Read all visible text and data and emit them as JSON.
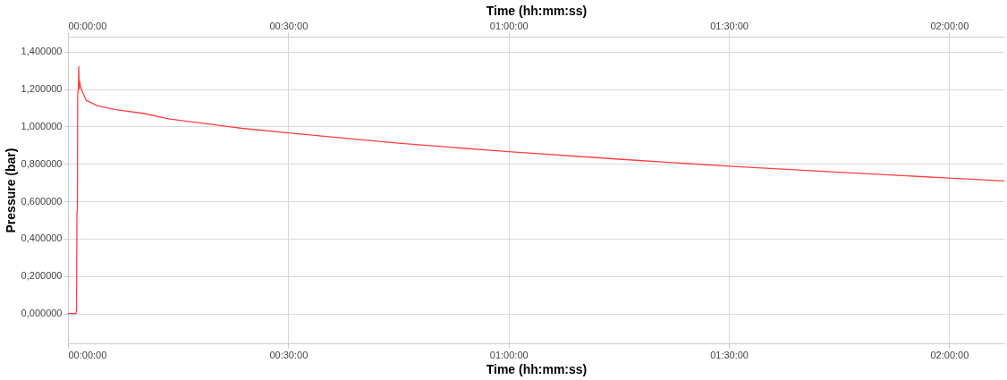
{
  "chart_data": {
    "type": "line",
    "xlabel": "Time (hh:mm:ss)",
    "x2label": "Time (hh:mm:ss)",
    "ylabel": "Pressure (bar)",
    "xlim": [
      0,
      2.125
    ],
    "x2lim": [
      0,
      2.125
    ],
    "xticks": [
      {
        "value": 0,
        "label": "00:00:00"
      },
      {
        "value": 0.5,
        "label": "00:30:00"
      },
      {
        "value": 1,
        "label": "01:00:00"
      },
      {
        "value": 1.5,
        "label": "01:30:00"
      },
      {
        "value": 2,
        "label": "02:00:00"
      }
    ],
    "x2ticks": [
      {
        "value": 0,
        "label": "00:00:00"
      },
      {
        "value": 0.5,
        "label": "00:30:00"
      },
      {
        "value": 1,
        "label": "01:00:00"
      },
      {
        "value": 1.5,
        "label": "01:30:00"
      },
      {
        "value": 2,
        "label": "02:00:00"
      }
    ],
    "ylim": [
      -0.16,
      1.48
    ],
    "yticks": [
      {
        "value": 0,
        "label": "0,000000"
      },
      {
        "value": 0.2,
        "label": "0,200000"
      },
      {
        "value": 0.4,
        "label": "0,400000"
      },
      {
        "value": 0.6,
        "label": "0,600000"
      },
      {
        "value": 0.8,
        "label": "0,800000"
      },
      {
        "value": 1.0,
        "label": "1,000000"
      },
      {
        "value": 1.2,
        "label": "1,200000"
      },
      {
        "value": 1.4,
        "label": "1,400000"
      }
    ],
    "grid": true,
    "marker": "none",
    "line_style": "solid",
    "series": [
      {
        "color": "#ff4040",
        "x": [
          0,
          0.0184,
          0.0194,
          0.0204,
          0.0214,
          0.022,
          0.0235,
          0.0245,
          0.0255,
          0.0266,
          0.0286,
          0.0409,
          0.0675,
          0.108,
          0.17,
          0.231,
          0.395,
          0.5,
          0.75,
          1.0,
          1.25,
          1.5,
          1.75,
          2.0,
          2.125
        ],
        "values": [
          0,
          0,
          0.02,
          0.54,
          0.55,
          1.17,
          1.2,
          1.32,
          1.2,
          1.24,
          1.21,
          1.14,
          1.11,
          1.09,
          1.07,
          1.04,
          0.99,
          0.965,
          0.91,
          0.865,
          0.825,
          0.787,
          0.755,
          0.724,
          0.708
        ]
      }
    ]
  }
}
